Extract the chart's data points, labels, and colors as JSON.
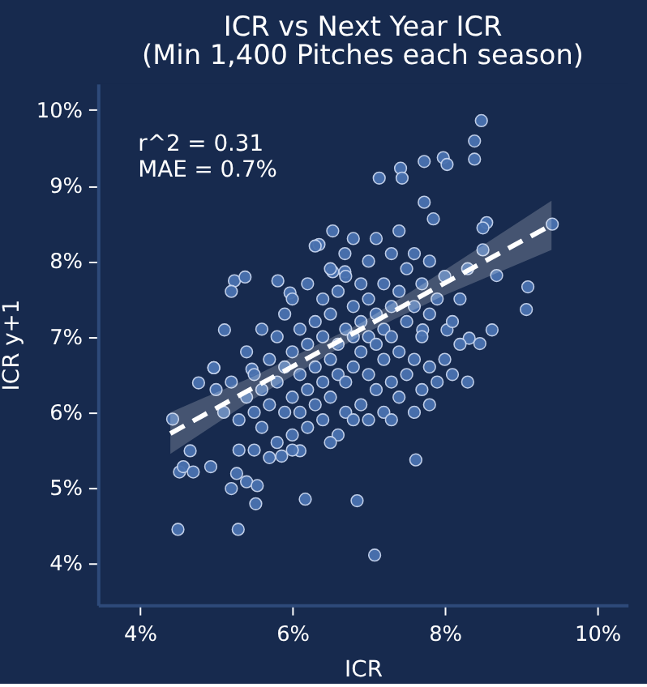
{
  "chart_data": {
    "type": "scatter",
    "title": "ICR vs Next Year ICR",
    "subtitle": "(Min 1,400 Pitches each season)",
    "xlabel": "ICR",
    "ylabel": "ICR y+1",
    "annotations": [
      "r^2 = 0.31",
      "MAE = 0.7%"
    ],
    "xlim": [
      3.45,
      10.4
    ],
    "ylim": [
      3.45,
      10.35
    ],
    "xticks": [
      {
        "value": 4,
        "label": "4%"
      },
      {
        "value": 6,
        "label": "6%"
      },
      {
        "value": 8,
        "label": "8%"
      },
      {
        "value": 10,
        "label": "10%"
      }
    ],
    "yticks": [
      {
        "value": 4,
        "label": "4%"
      },
      {
        "value": 5,
        "label": "5%"
      },
      {
        "value": 6,
        "label": "6%"
      },
      {
        "value": 7,
        "label": "7%"
      },
      {
        "value": 8,
        "label": "8%"
      },
      {
        "value": 9,
        "label": "9%"
      },
      {
        "value": 10,
        "label": "10%"
      }
    ],
    "grid": false,
    "series": [
      {
        "type": "scatter",
        "color": "#4a72b0",
        "marker": "circle",
        "x": [
          4.5,
          5.29,
          4.43,
          4.52,
          4.66,
          4.57,
          4.7,
          4.93,
          5.27,
          5.2,
          5.4,
          5.54,
          5.52,
          6.17,
          6.85,
          7.62,
          7.08,
          8.48,
          8.39,
          8.39,
          7.98,
          8.03,
          7.73,
          7.42,
          7.44,
          7.14,
          7.73,
          7.85,
          8.55,
          8.5,
          9.41,
          8.5,
          8.68,
          9.09,
          9.07,
          8.62,
          8.32,
          8.46,
          8.03,
          7.71,
          6.53,
          6.35,
          6.69,
          6.69,
          6.53,
          5.24,
          5.38,
          5.2,
          5.81,
          5.97,
          5.11,
          4.97,
          5.47,
          4.77,
          4.97,
          6.1,
          5.86,
          5.3,
          5.4,
          5.5,
          5.5,
          5.6,
          5.6,
          5.7,
          5.7,
          5.8,
          5.8,
          5.8,
          5.9,
          5.9,
          5.9,
          6.0,
          6.0,
          6.0,
          6.0,
          6.1,
          6.1,
          6.1,
          6.2,
          6.2,
          6.2,
          6.2,
          6.3,
          6.3,
          6.3,
          6.3,
          6.4,
          6.4,
          6.4,
          6.4,
          6.5,
          6.5,
          6.5,
          6.5,
          6.6,
          6.6,
          6.6,
          6.6,
          6.7,
          6.7,
          6.7,
          6.7,
          6.8,
          6.8,
          6.8,
          6.8,
          6.9,
          6.9,
          6.9,
          6.9,
          7.0,
          7.0,
          7.0,
          7.0,
          7.0,
          7.1,
          7.1,
          7.1,
          7.1,
          7.2,
          7.2,
          7.2,
          7.2,
          7.3,
          7.3,
          7.3,
          7.3,
          7.4,
          7.4,
          7.4,
          7.4,
          7.5,
          7.5,
          7.5,
          7.6,
          7.6,
          7.6,
          7.6,
          7.7,
          7.7,
          7.7,
          7.8,
          7.8,
          7.8,
          7.9,
          7.9,
          8.0,
          8.0,
          8.1,
          8.1,
          8.2,
          8.2,
          8.3,
          8.3,
          5.4,
          5.6,
          5.2,
          5.0,
          5.1,
          5.3,
          5.5,
          5.7,
          6.0,
          6.5,
          6.8,
          7.3,
          7.8
        ],
        "values": [
          4.45,
          4.45,
          5.91,
          5.21,
          5.49,
          5.28,
          5.21,
          5.28,
          5.19,
          4.99,
          5.08,
          5.03,
          4.79,
          4.85,
          4.83,
          5.37,
          4.11,
          9.86,
          9.59,
          9.35,
          9.37,
          9.28,
          9.32,
          9.23,
          9.1,
          9.1,
          8.78,
          8.56,
          8.51,
          8.44,
          8.49,
          8.15,
          7.81,
          7.66,
          7.36,
          7.09,
          6.98,
          6.91,
          7.09,
          7.09,
          8.4,
          8.22,
          8.1,
          7.86,
          7.86,
          7.74,
          7.79,
          7.6,
          7.74,
          7.58,
          7.09,
          6.59,
          6.57,
          6.39,
          6.59,
          5.49,
          5.42,
          5.9,
          6.2,
          6.0,
          6.5,
          5.8,
          6.3,
          6.1,
          6.7,
          5.6,
          6.4,
          7.0,
          6.0,
          6.6,
          7.3,
          5.7,
          6.2,
          6.8,
          7.5,
          6.0,
          6.5,
          7.1,
          5.8,
          6.3,
          6.9,
          7.7,
          6.1,
          6.6,
          7.2,
          8.2,
          5.9,
          6.4,
          7.0,
          7.5,
          6.2,
          6.7,
          7.3,
          7.9,
          5.7,
          6.5,
          6.9,
          7.6,
          6.0,
          6.4,
          7.1,
          7.8,
          6.6,
          7.0,
          7.4,
          8.3,
          6.1,
          6.8,
          7.2,
          7.7,
          5.9,
          6.5,
          7.0,
          7.5,
          8.0,
          6.3,
          6.9,
          7.3,
          8.3,
          6.0,
          6.7,
          7.1,
          7.7,
          6.4,
          7.0,
          7.4,
          8.1,
          6.2,
          6.8,
          7.6,
          8.4,
          6.5,
          7.2,
          7.9,
          6.0,
          6.7,
          7.4,
          8.1,
          6.3,
          7.0,
          7.7,
          6.6,
          7.3,
          8.0,
          6.4,
          7.5,
          6.7,
          7.8,
          6.5,
          7.2,
          6.9,
          7.5,
          6.4,
          7.9,
          6.8,
          7.1,
          6.4,
          6.3,
          6.0,
          5.5,
          5.5,
          5.4,
          5.5,
          5.6,
          5.9,
          5.9,
          6.1
        ]
      },
      {
        "type": "line",
        "color": "#ffffff",
        "line_style": "dashed",
        "marker": "none",
        "x": [
          4.4,
          5.5,
          6.9,
          8.0,
          9.4
        ],
        "values": [
          5.72,
          6.33,
          7.1,
          7.71,
          8.48
        ],
        "lower": [
          5.45,
          6.18,
          7.02,
          7.55,
          8.15
        ],
        "upper": [
          6.0,
          6.48,
          7.18,
          7.88,
          8.8
        ]
      }
    ]
  }
}
